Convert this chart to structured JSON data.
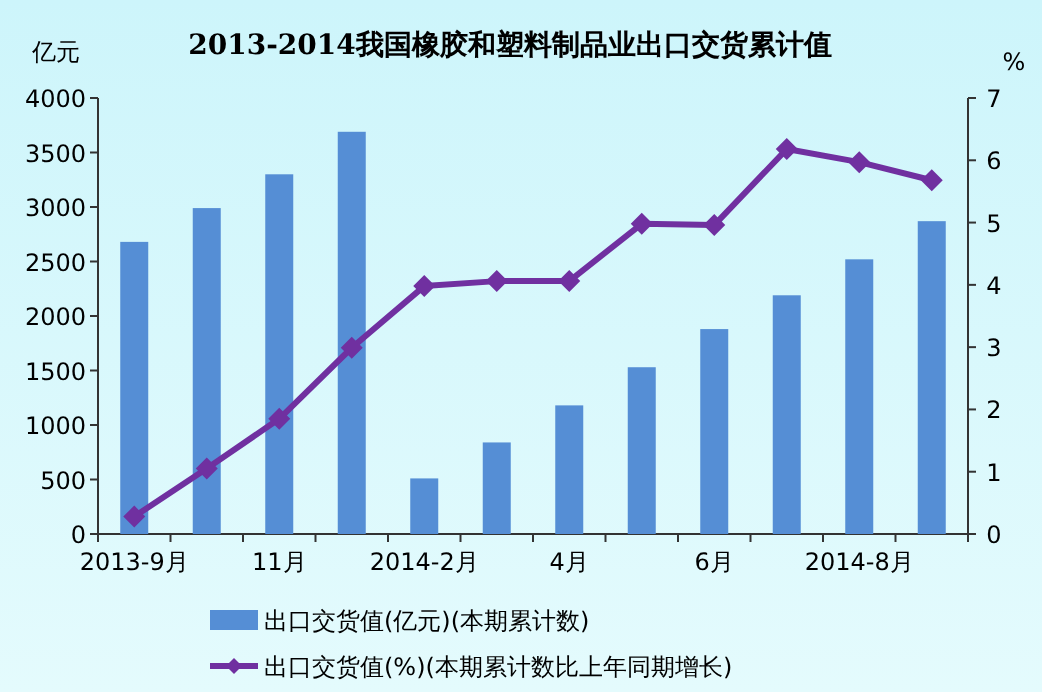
{
  "chart_data": {
    "type": "bar",
    "title": "2013-2014我国橡胶和塑料制品业出口交货累计值",
    "ylabel": "亿元",
    "y2label": "%",
    "categories": [
      "2013-9月",
      null,
      "11月",
      null,
      "2014-2月",
      null,
      "4月",
      null,
      "6月",
      null,
      "2014-8月",
      null
    ],
    "series": [
      {
        "name": "出口交货值(亿元)(本期累计数)",
        "color": "#558ed5",
        "values": [
          2680,
          2990,
          3300,
          3690,
          510,
          840,
          1180,
          1530,
          1880,
          2190,
          2520,
          2870
        ]
      },
      {
        "name": "出口交货值(%)(本期累计数比上年同期增长)",
        "type": "line",
        "axis": "y2",
        "marker": "diamond",
        "color": "#7030a0",
        "values": [
          0.28,
          1.05,
          1.85,
          2.99,
          3.98,
          4.06,
          4.06,
          4.98,
          4.96,
          6.18,
          5.97,
          5.68
        ]
      }
    ],
    "ylim": [
      0,
      4000
    ],
    "yticks": [
      0,
      500,
      1000,
      1500,
      2000,
      2500,
      3000,
      3500,
      4000
    ],
    "y2lim": [
      0,
      7
    ],
    "y2ticks": [
      0,
      1,
      2,
      3,
      4,
      5,
      6,
      7
    ],
    "legend": "bottom",
    "grid": false
  }
}
